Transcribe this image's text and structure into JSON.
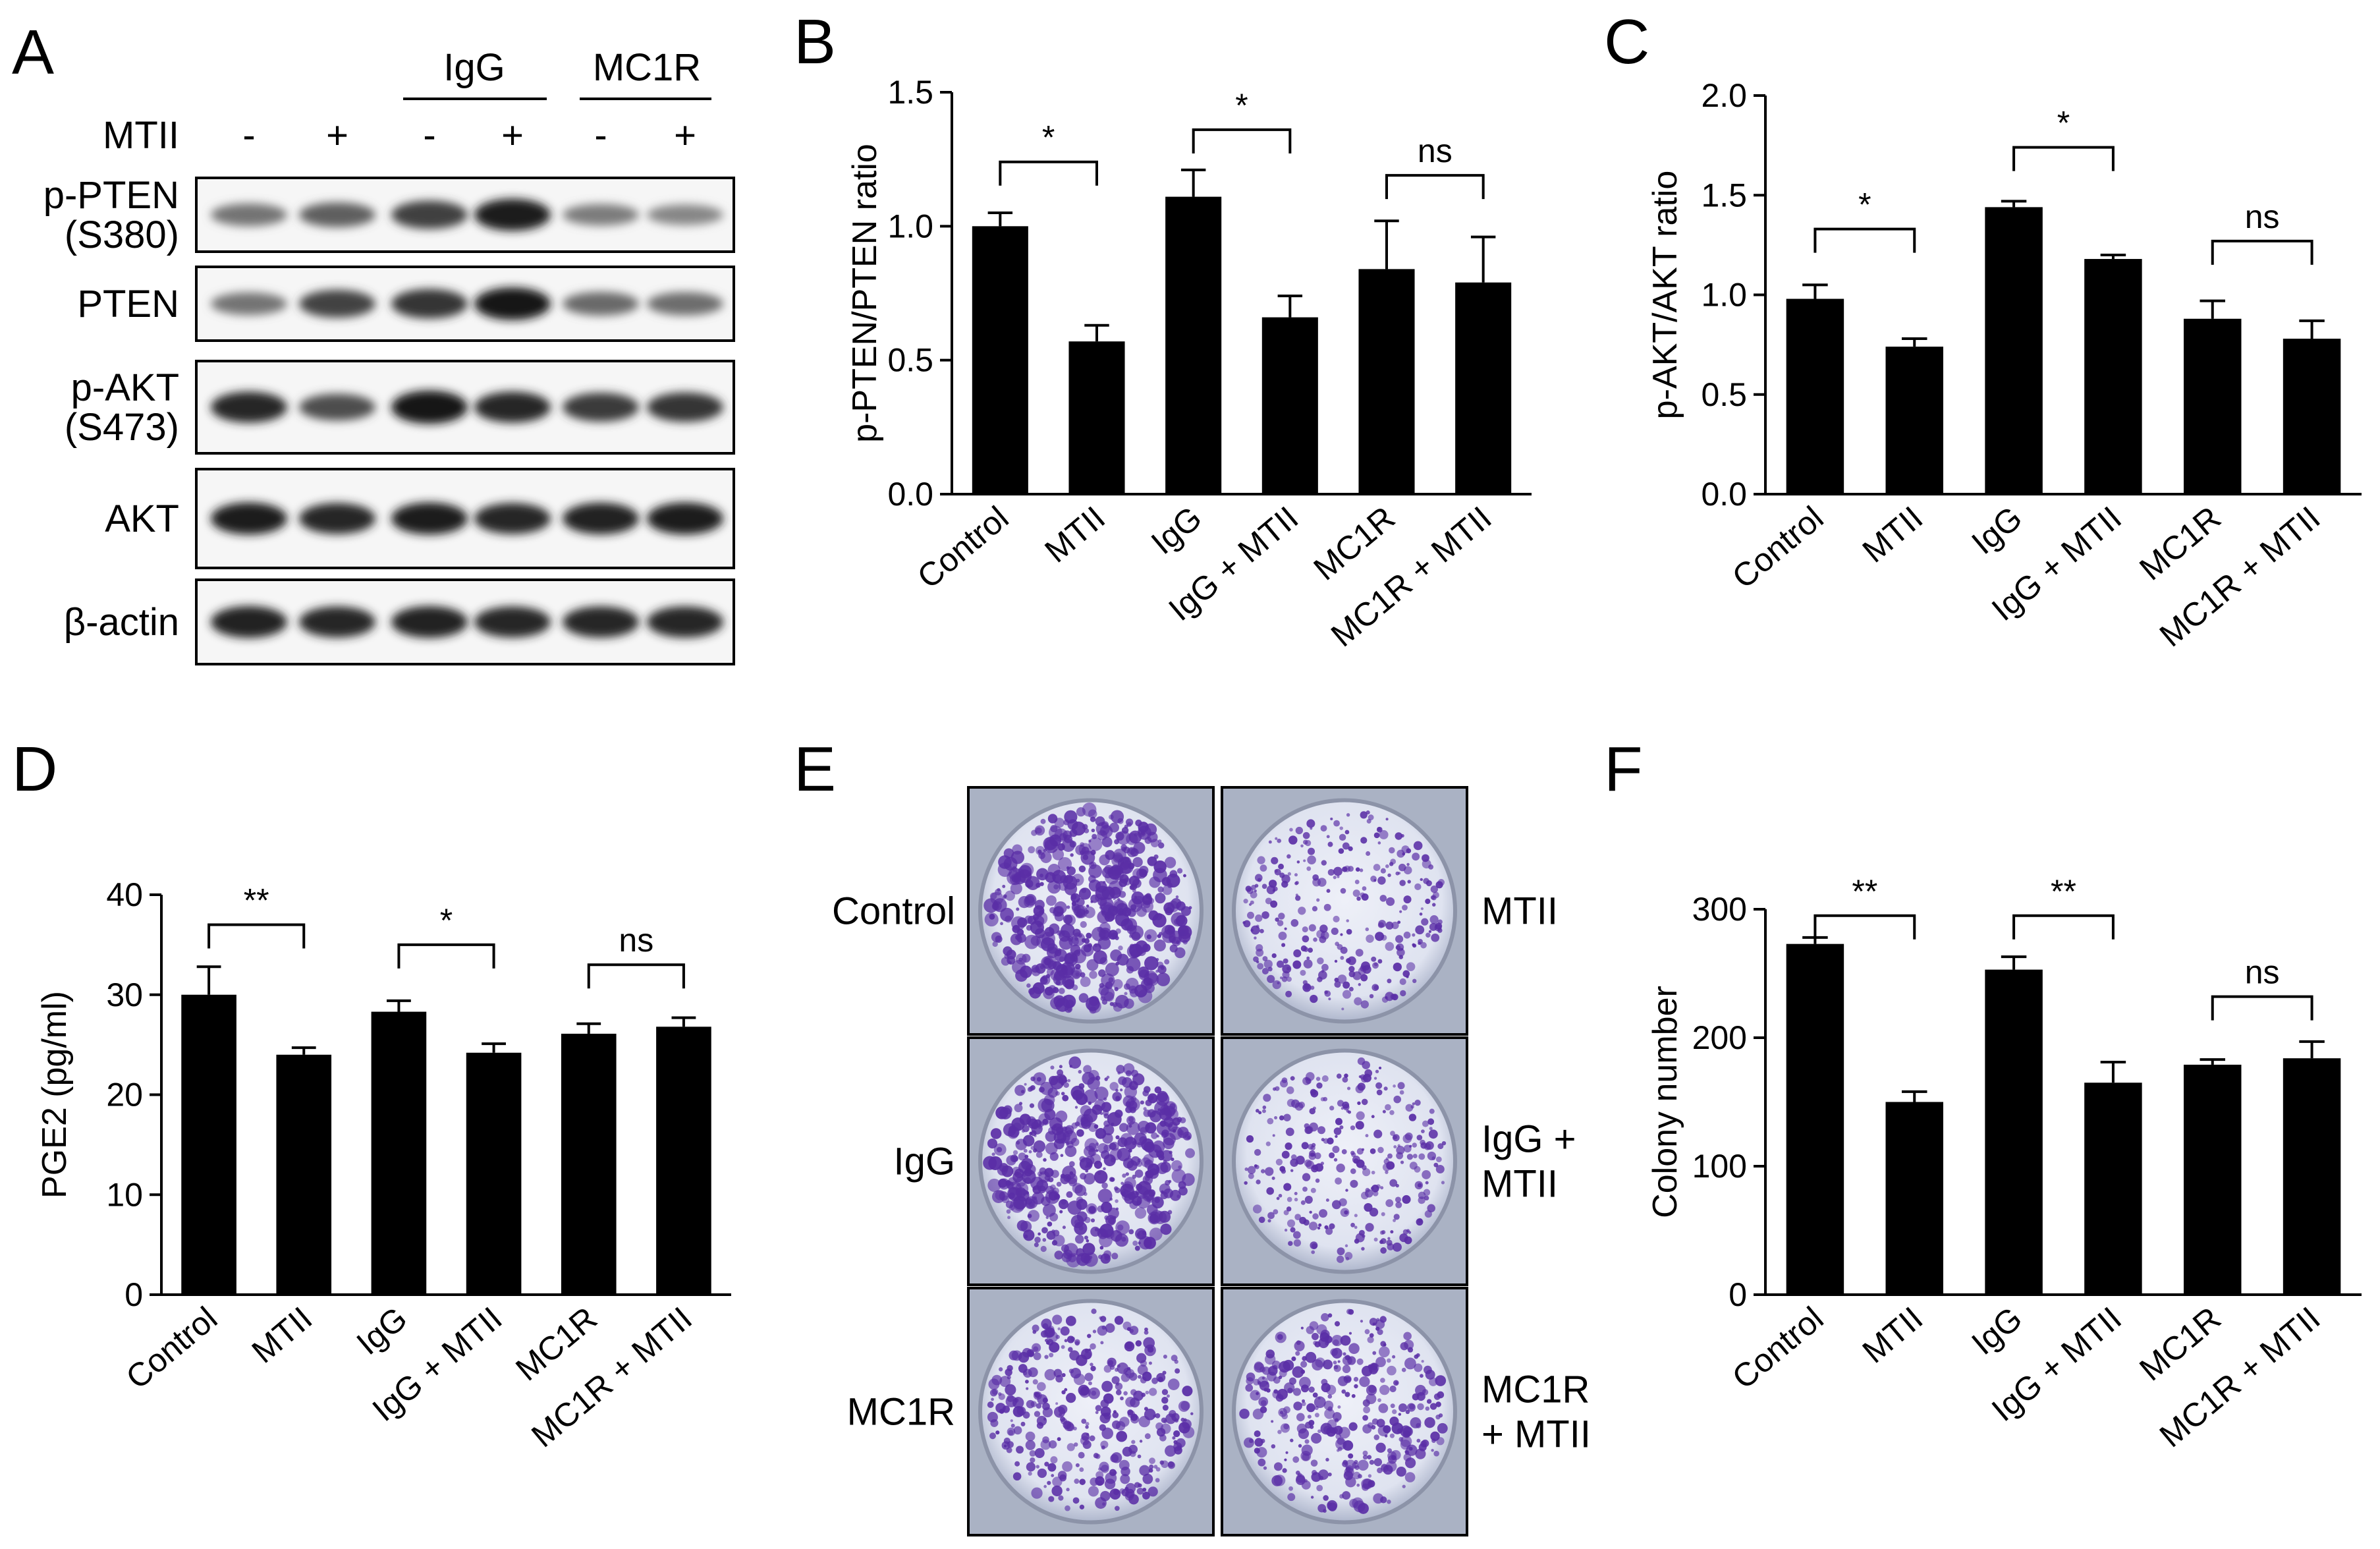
{
  "figure": {
    "panel_letters": [
      "A",
      "B",
      "C",
      "D",
      "E",
      "F"
    ]
  },
  "panel_a": {
    "group_labels": [
      "IgG",
      "MC1R"
    ],
    "treatment_label": "MTII",
    "lane_signs": [
      "-",
      "+",
      "-",
      "+",
      "-",
      "+"
    ],
    "blots": [
      {
        "label_lines": [
          "p-PTEN",
          "(S380)"
        ],
        "intensity": [
          0.45,
          0.55,
          0.72,
          0.9,
          0.4,
          0.35
        ]
      },
      {
        "label_lines": [
          "PTEN"
        ],
        "intensity": [
          0.45,
          0.7,
          0.78,
          0.92,
          0.5,
          0.48
        ]
      },
      {
        "label_lines": [
          "p-AKT",
          "(S473)"
        ],
        "intensity": [
          0.85,
          0.65,
          0.95,
          0.85,
          0.75,
          0.78
        ]
      },
      {
        "label_lines": [
          "AKT"
        ],
        "intensity": [
          0.9,
          0.85,
          0.9,
          0.85,
          0.88,
          0.9
        ]
      },
      {
        "label_lines": [
          "β-actin"
        ],
        "intensity": [
          0.88,
          0.85,
          0.88,
          0.85,
          0.86,
          0.86
        ]
      }
    ]
  },
  "chart_data": [
    {
      "panel": "B",
      "type": "bar",
      "title": "",
      "ylabel": "p-PTEN/PTEN ratio",
      "categories": [
        "Control",
        "MTII",
        "IgG",
        "IgG + MTII",
        "MC1R",
        "MC1R + MTII"
      ],
      "values": [
        1.0,
        0.57,
        1.11,
        0.66,
        0.84,
        0.79
      ],
      "errors": [
        0.05,
        0.06,
        0.1,
        0.08,
        0.18,
        0.17
      ],
      "ylim": [
        0,
        1.5
      ],
      "yticks": [
        "0.0",
        "0.5",
        "1.0",
        "1.5"
      ],
      "significance": [
        {
          "from": 0,
          "to": 1,
          "label": "*",
          "y": 1.24
        },
        {
          "from": 2,
          "to": 3,
          "label": "*",
          "y": 1.36
        },
        {
          "from": 4,
          "to": 5,
          "label": "ns",
          "y": 1.19
        }
      ]
    },
    {
      "panel": "C",
      "type": "bar",
      "title": "",
      "ylabel": "p-AKT/AKT ratio",
      "categories": [
        "Control",
        "MTII",
        "IgG",
        "IgG + MTII",
        "MC1R",
        "MC1R + MTII"
      ],
      "values": [
        0.98,
        0.74,
        1.44,
        1.18,
        0.88,
        0.78
      ],
      "errors": [
        0.07,
        0.04,
        0.03,
        0.02,
        0.09,
        0.09
      ],
      "ylim": [
        0,
        2.0
      ],
      "yticks": [
        "0.0",
        "0.5",
        "1.0",
        "1.5",
        "2.0"
      ],
      "significance": [
        {
          "from": 0,
          "to": 1,
          "label": "*",
          "y": 1.33
        },
        {
          "from": 2,
          "to": 3,
          "label": "*",
          "y": 1.74
        },
        {
          "from": 4,
          "to": 5,
          "label": "ns",
          "y": 1.27
        }
      ]
    },
    {
      "panel": "D",
      "type": "bar",
      "title": "",
      "ylabel": "PGE2 (pg/ml)",
      "categories": [
        "Control",
        "MTII",
        "IgG",
        "IgG + MTII",
        "MC1R",
        "MC1R + MTII"
      ],
      "values": [
        30,
        24,
        28.3,
        24.2,
        26.1,
        26.8
      ],
      "errors": [
        2.8,
        0.7,
        1.1,
        0.9,
        1.0,
        0.9
      ],
      "ylim": [
        0,
        40
      ],
      "yticks": [
        "0",
        "10",
        "20",
        "30",
        "40"
      ],
      "significance": [
        {
          "from": 0,
          "to": 1,
          "label": "**",
          "y": 37
        },
        {
          "from": 2,
          "to": 3,
          "label": "*",
          "y": 35
        },
        {
          "from": 4,
          "to": 5,
          "label": "ns",
          "y": 33
        }
      ]
    },
    {
      "panel": "F",
      "type": "bar",
      "title": "",
      "ylabel": "Colony number",
      "categories": [
        "Control",
        "MTII",
        "IgG",
        "IgG + MTII",
        "MC1R",
        "MC1R + MTII"
      ],
      "values": [
        273,
        150,
        253,
        165,
        179,
        184
      ],
      "errors": [
        5,
        8,
        10,
        16,
        4,
        13
      ],
      "ylim": [
        0,
        300
      ],
      "yticks": [
        "0",
        "100",
        "200",
        "300"
      ],
      "significance": [
        {
          "from": 0,
          "to": 1,
          "label": "**",
          "y": 295
        },
        {
          "from": 2,
          "to": 3,
          "label": "**",
          "y": 295
        },
        {
          "from": 4,
          "to": 5,
          "label": "ns",
          "y": 232
        }
      ]
    }
  ],
  "panel_e": {
    "dishes": [
      {
        "label": "Control",
        "density": "high"
      },
      {
        "label": "MTII",
        "density": "low"
      },
      {
        "label": "IgG",
        "density": "high"
      },
      {
        "label_lines": [
          "IgG +",
          "MTII"
        ],
        "density": "low"
      },
      {
        "label": "MC1R",
        "density": "mid"
      },
      {
        "label_lines": [
          "MC1R",
          "+ MTII"
        ],
        "density": "mid"
      }
    ]
  }
}
